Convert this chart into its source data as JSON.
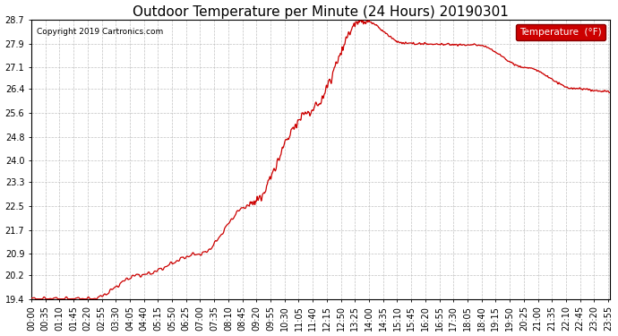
{
  "title": "Outdoor Temperature per Minute (24 Hours) 20190301",
  "copyright": "Copyright 2019 Cartronics.com",
  "legend_label": "Temperature  (°F)",
  "line_color": "#cc0000",
  "legend_bg": "#cc0000",
  "legend_text_color": "#ffffff",
  "bg_color": "#ffffff",
  "plot_bg_color": "#ffffff",
  "grid_color": "#bbbbbb",
  "yticks": [
    19.4,
    20.2,
    20.9,
    21.7,
    22.5,
    23.3,
    24.0,
    24.8,
    25.6,
    26.4,
    27.1,
    27.9,
    28.7
  ],
  "ylim_min": 19.4,
  "ylim_max": 28.7,
  "xlabel_rotation": 90,
  "title_fontsize": 11,
  "tick_fontsize": 7,
  "fig_width": 6.9,
  "fig_height": 3.75,
  "fig_dpi": 100
}
